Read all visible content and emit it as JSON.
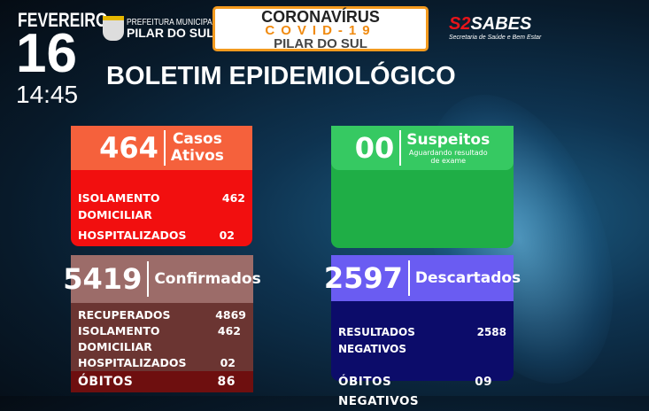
{
  "header": {
    "month": "FEVEREIRO",
    "day": "16",
    "time": "14:45",
    "prefeitura_line1": "PREFEITURA MUNICIPAL",
    "prefeitura_line2": "PILAR DO SUL",
    "banner_line1": "CORONAVÍRUS",
    "banner_line2": "COVID-19",
    "banner_line3": "PILAR DO SUL",
    "sabes_logo": "SABES",
    "sabes_sub": "Secretaria de Saúde e Bem Estar",
    "title": "BOLETIM EPIDEMIOLÓGICO"
  },
  "ativos": {
    "count": "464",
    "label1": "Casos",
    "label2": "Ativos",
    "rows": [
      {
        "label": "ISOLAMENTO DOMICILIAR",
        "value": "462"
      },
      {
        "label": "HOSPITALIZADOS",
        "value": "02"
      }
    ]
  },
  "suspeitos": {
    "count": "00",
    "label": "Suspeitos",
    "sub1": "Aguardando resultado",
    "sub2": "de exame"
  },
  "confirmados": {
    "count": "5419",
    "label": "Confirmados",
    "rows": [
      {
        "label": "RECUPERADOS",
        "value": "4869"
      },
      {
        "label": "ISOLAMENTO DOMICILIAR",
        "value": "462"
      },
      {
        "label": "HOSPITALIZADOS",
        "value": "02"
      }
    ],
    "obitos": {
      "label": "ÓBITOS",
      "value": "86"
    }
  },
  "descartados": {
    "count": "2597",
    "label": "Descartados",
    "rows": [
      {
        "label": "RESULTADOS NEGATIVOS",
        "value": "2588"
      },
      {
        "label": "ÓBITOS NEGATIVOS",
        "value": "09"
      }
    ]
  },
  "colors": {
    "ativos_header": "#f5613c",
    "ativos_body": "#f20f0f",
    "suspeitos_header": "#36c962",
    "suspeitos_body": "#1fae46",
    "confirmados_header": "#9c6c69",
    "confirmados_body": "#6b3532",
    "obitos_row": "#6e0f0f",
    "descartados_header": "#6a5cf2",
    "descartados_body": "#0c0c6a",
    "banner_border": "#f39a1e"
  }
}
